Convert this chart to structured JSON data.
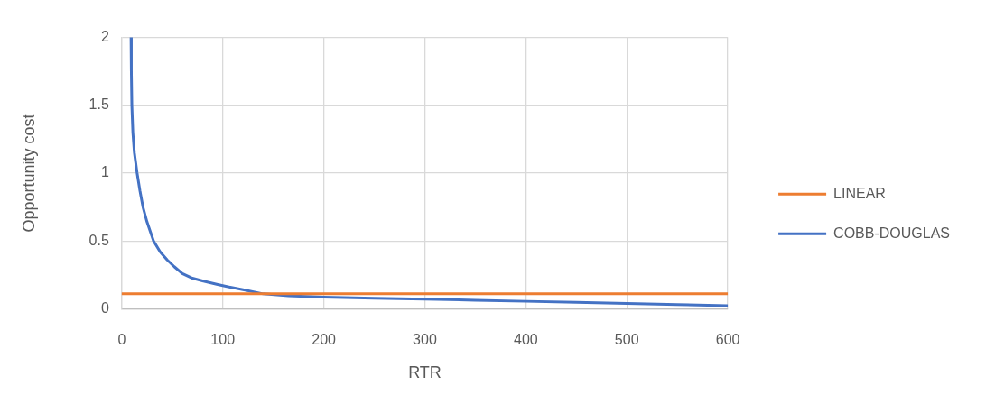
{
  "chart_data": {
    "type": "line",
    "xlabel": "RTR",
    "ylabel": "Opportunity cost",
    "series": [
      {
        "name": "LINEAR",
        "color": "#ed7d31",
        "x": [
          0,
          600
        ],
        "values": [
          0.11,
          0.11
        ]
      },
      {
        "name": "COBB-DOUGLAS",
        "color": "#4472c4",
        "x": [
          9.2,
          9.5,
          10,
          11,
          12.5,
          15.2,
          18,
          21,
          25,
          31.5,
          38,
          45,
          52,
          60,
          70,
          80,
          94,
          100,
          120,
          140,
          165,
          200,
          250,
          300,
          350,
          400,
          450,
          500,
          550,
          600
        ],
        "values": [
          2.0,
          1.75,
          1.5,
          1.3,
          1.15,
          1.0,
          0.87,
          0.75,
          0.64,
          0.5,
          0.42,
          0.36,
          0.31,
          0.26,
          0.225,
          0.205,
          0.18,
          0.17,
          0.14,
          0.11,
          0.095,
          0.086,
          0.078,
          0.07,
          0.063,
          0.055,
          0.047,
          0.039,
          0.031,
          0.022
        ]
      }
    ],
    "xlim": [
      0,
      600
    ],
    "xticks": [
      0,
      100,
      200,
      300,
      400,
      500,
      600
    ],
    "ylim": [
      0,
      2
    ],
    "yticks": [
      0,
      0.5,
      1,
      1.5,
      2
    ],
    "grid": true,
    "legend": "right",
    "marker": "none",
    "line_style": "solid"
  }
}
